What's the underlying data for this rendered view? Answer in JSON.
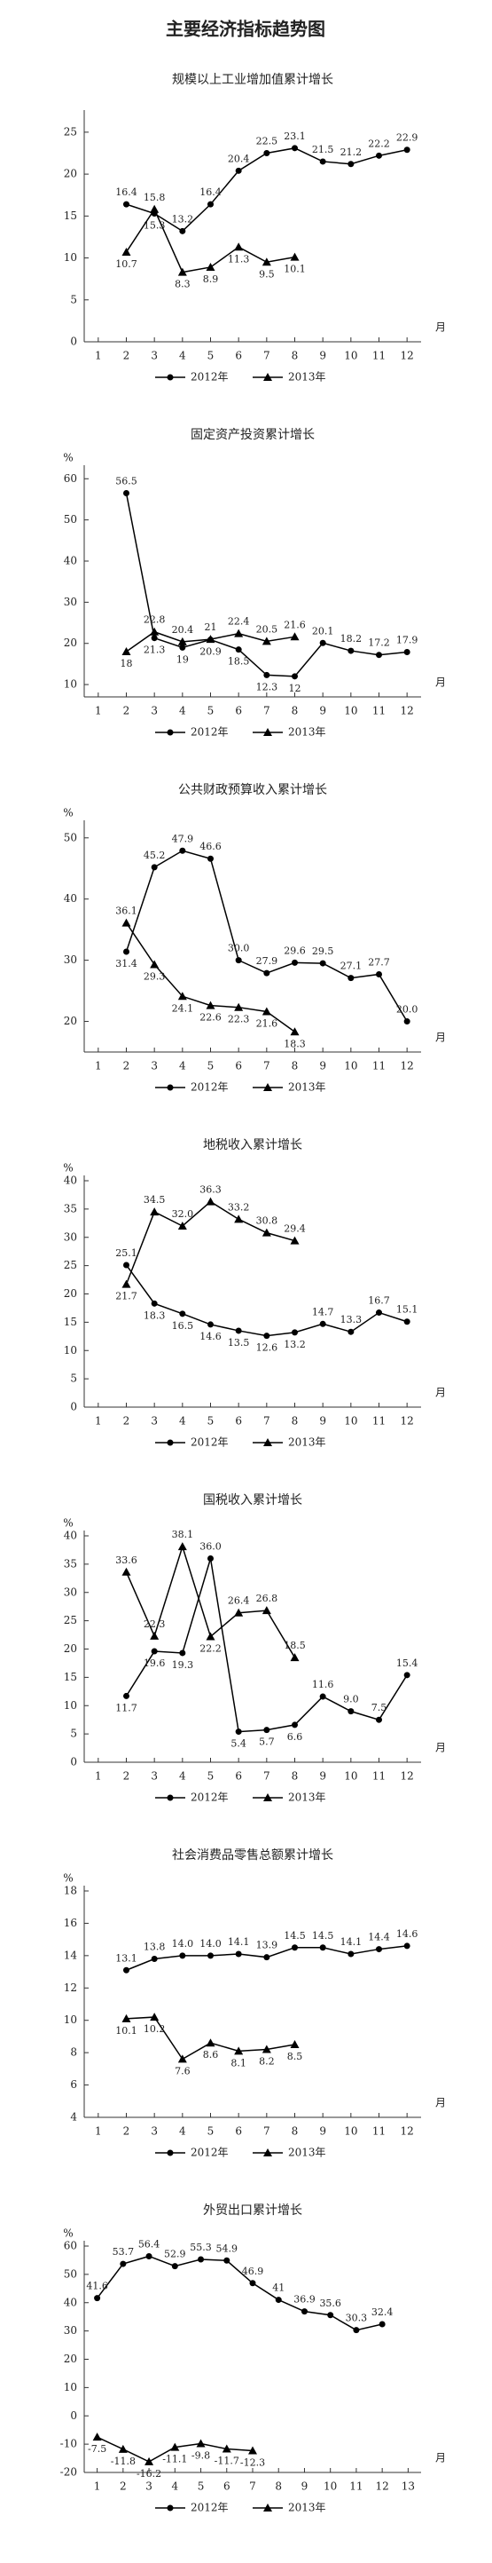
{
  "title": "主要经济指标趋势图",
  "chart_data": [
    {
      "type": "line",
      "title": "规模以上工业增加值累计增长",
      "x_label": "月",
      "x": [
        1,
        2,
        3,
        4,
        5,
        6,
        7,
        8,
        9,
        10,
        11,
        12
      ],
      "xlim": [
        0.5,
        12.5
      ],
      "xticks": [
        1,
        2,
        3,
        4,
        5,
        6,
        7,
        8,
        9,
        10,
        11,
        12
      ],
      "ylim": [
        0,
        27
      ],
      "yticks": [
        0,
        5,
        10,
        15,
        20,
        25
      ],
      "series": [
        {
          "name": "2012年",
          "color": "#000000",
          "marker": "circle",
          "values": [
            null,
            16.4,
            15.3,
            13.2,
            16.4,
            20.4,
            22.5,
            23.1,
            21.5,
            21.2,
            22.2,
            22.9
          ]
        },
        {
          "name": "2013年",
          "color": "#000000",
          "marker": "triangle",
          "values": [
            null,
            10.7,
            15.8,
            8.3,
            8.9,
            11.3,
            9.5,
            10.1,
            null,
            null,
            null,
            null
          ]
        }
      ]
    },
    {
      "type": "line",
      "title": "固定资产投资累计增长",
      "y_unit": "%",
      "x_label": "月",
      "x": [
        1,
        2,
        3,
        4,
        5,
        6,
        7,
        8,
        9,
        10,
        11,
        12
      ],
      "xlim": [
        0.5,
        12.5
      ],
      "xticks": [
        1,
        2,
        3,
        4,
        5,
        6,
        7,
        8,
        9,
        10,
        11,
        12
      ],
      "ylim": [
        7,
        62
      ],
      "yticks": [
        10,
        20,
        30,
        40,
        50,
        60
      ],
      "series": [
        {
          "name": "2012年",
          "color": "#000000",
          "marker": "circle",
          "values": [
            null,
            56.5,
            21.3,
            19,
            20.9,
            18.5,
            12.3,
            12,
            20.1,
            18.2,
            17.2,
            17.9
          ]
        },
        {
          "name": "2013年",
          "color": "#000000",
          "marker": "triangle",
          "values": [
            null,
            18,
            22.8,
            20.4,
            21,
            22.4,
            20.5,
            21.6,
            null,
            null,
            null,
            null
          ]
        }
      ]
    },
    {
      "type": "line",
      "title": "公共财政预算收入累计增长",
      "y_unit": "%",
      "x_label": "月",
      "x": [
        1,
        2,
        3,
        4,
        5,
        6,
        7,
        8,
        9,
        10,
        11,
        12
      ],
      "xlim": [
        0.5,
        12.5
      ],
      "xticks": [
        1,
        2,
        3,
        4,
        5,
        6,
        7,
        8,
        9,
        10,
        11,
        12
      ],
      "ylim": [
        15,
        52
      ],
      "yticks": [
        20,
        30,
        40,
        50
      ],
      "series": [
        {
          "name": "2012年",
          "color": "#000000",
          "marker": "circle",
          "values": [
            null,
            31.4,
            45.2,
            47.9,
            46.6,
            30,
            27.9,
            29.6,
            29.5,
            27.1,
            27.7,
            20
          ],
          "value_labels": [
            null,
            "31.4",
            "45.2",
            "47.9",
            "46.6",
            "30.0",
            "27.9",
            "29.6",
            "29.5",
            "27.1",
            "27.7",
            "20.0"
          ]
        },
        {
          "name": "2013年",
          "color": "#000000",
          "marker": "triangle",
          "values": [
            null,
            36.1,
            29.3,
            24.1,
            22.6,
            22.3,
            21.6,
            18.3,
            null,
            null,
            null,
            null
          ]
        }
      ]
    },
    {
      "type": "line",
      "title": "地税收入累计增长",
      "y_unit": "%",
      "x_label": "月",
      "x": [
        1,
        2,
        3,
        4,
        5,
        6,
        7,
        8,
        9,
        10,
        11,
        12
      ],
      "xlim": [
        0.5,
        12.5
      ],
      "xticks": [
        1,
        2,
        3,
        4,
        5,
        6,
        7,
        8,
        9,
        10,
        11,
        12
      ],
      "ylim": [
        0,
        40
      ],
      "yticks": [
        0,
        5,
        10,
        15,
        20,
        25,
        30,
        35,
        40
      ],
      "series": [
        {
          "name": "2012年",
          "color": "#000000",
          "marker": "circle",
          "values": [
            null,
            25.1,
            18.3,
            16.5,
            14.6,
            13.5,
            12.6,
            13.2,
            14.7,
            13.3,
            16.7,
            15.1
          ]
        },
        {
          "name": "2013年",
          "color": "#000000",
          "marker": "triangle",
          "values": [
            null,
            21.7,
            34.5,
            32,
            36.3,
            33.2,
            30.8,
            29.4,
            null,
            null,
            null,
            null
          ],
          "value_labels": [
            null,
            "21.7",
            "34.5",
            "32.0",
            "36.3",
            "33.2",
            "30.8",
            "29.4",
            null,
            null,
            null,
            null
          ]
        }
      ]
    },
    {
      "type": "line",
      "title": "国税收入累计增长",
      "y_unit": "%",
      "x_label": "月",
      "x": [
        1,
        2,
        3,
        4,
        5,
        6,
        7,
        8,
        9,
        10,
        11,
        12
      ],
      "xlim": [
        0.5,
        12.5
      ],
      "xticks": [
        1,
        2,
        3,
        4,
        5,
        6,
        7,
        8,
        9,
        10,
        11,
        12
      ],
      "ylim": [
        0,
        40
      ],
      "yticks": [
        0,
        5,
        10,
        15,
        20,
        25,
        30,
        35,
        40
      ],
      "series": [
        {
          "name": "2012年",
          "color": "#000000",
          "marker": "circle",
          "values": [
            null,
            11.7,
            19.6,
            19.3,
            36,
            5.4,
            5.7,
            6.6,
            11.6,
            9,
            7.5,
            15.4
          ],
          "value_labels": [
            null,
            "11.7",
            "19.6",
            "19.3",
            "36.0",
            "5.4",
            "5.7",
            "6.6",
            "11.6",
            "9.0",
            "7.5",
            "15.4"
          ]
        },
        {
          "name": "2013年",
          "color": "#000000",
          "marker": "triangle",
          "values": [
            null,
            33.6,
            22.3,
            38.1,
            22.2,
            26.4,
            26.8,
            18.5,
            null,
            null,
            null,
            null
          ]
        }
      ]
    },
    {
      "type": "line",
      "title": "社会消费品零售总额累计增长",
      "y_unit": "%",
      "x_label": "月",
      "x": [
        1,
        2,
        3,
        4,
        5,
        6,
        7,
        8,
        9,
        10,
        11,
        12
      ],
      "xlim": [
        0.5,
        12.5
      ],
      "xticks": [
        1,
        2,
        3,
        4,
        5,
        6,
        7,
        8,
        9,
        10,
        11,
        12
      ],
      "ylim": [
        4,
        18
      ],
      "yticks": [
        4,
        6,
        8,
        10,
        12,
        14,
        16,
        18
      ],
      "series": [
        {
          "name": "2012年",
          "color": "#000000",
          "marker": "circle",
          "values": [
            null,
            13.1,
            13.8,
            14,
            14,
            14.1,
            13.9,
            14.5,
            14.5,
            14.1,
            14.4,
            14.6
          ],
          "value_labels": [
            null,
            "13.1",
            "13.8",
            "14.0",
            "14.0",
            "14.1",
            "13.9",
            "14.5",
            "14.5",
            "14.1",
            "14.4",
            "14.6"
          ]
        },
        {
          "name": "2013年",
          "color": "#000000",
          "marker": "triangle",
          "values": [
            null,
            10.1,
            10.2,
            7.6,
            8.6,
            8.1,
            8.2,
            8.5,
            null,
            null,
            null,
            null
          ]
        }
      ]
    },
    {
      "type": "line",
      "title": "外贸出口累计增长",
      "y_unit": "%",
      "x_label": "月",
      "x": [
        1,
        2,
        3,
        4,
        5,
        6,
        7,
        8,
        9,
        10,
        11,
        12
      ],
      "xlim": [
        0.5,
        13.5
      ],
      "xticks": [
        1,
        2,
        3,
        4,
        5,
        6,
        7,
        8,
        9,
        10,
        11,
        12,
        13
      ],
      "ylim": [
        -20,
        60
      ],
      "yticks": [
        -20,
        -10,
        0,
        10,
        20,
        30,
        40,
        50,
        60
      ],
      "series": [
        {
          "name": "2012年",
          "color": "#000000",
          "marker": "circle",
          "values": [
            41.6,
            53.7,
            56.4,
            52.9,
            55.3,
            54.9,
            46.9,
            41,
            36.9,
            35.6,
            30.3,
            32.4
          ]
        },
        {
          "name": "2013年",
          "color": "#000000",
          "marker": "triangle",
          "values": [
            -7.5,
            -11.8,
            -16.2,
            -11.1,
            -9.8,
            -11.7,
            -12.3,
            null,
            null,
            null,
            null,
            null
          ]
        }
      ]
    }
  ]
}
